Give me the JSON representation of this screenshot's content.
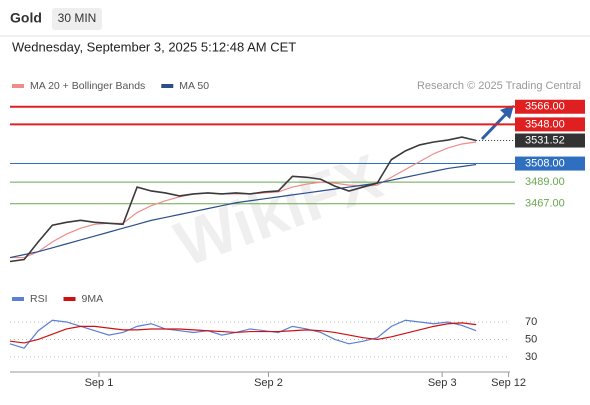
{
  "header": {
    "symbol": "Gold",
    "interval": "30 MIN",
    "timestamp": "Wednesday, September 3, 2025 5:12:48 AM CET"
  },
  "chart_data": [
    {
      "type": "line",
      "source": "Research © 2025 Trading Central",
      "watermark": "WikiFX",
      "x": [
        0,
        1,
        2,
        3,
        4,
        5,
        6,
        7,
        8,
        9,
        10,
        11,
        12,
        13,
        14,
        15,
        16,
        17,
        18,
        19,
        20,
        21,
        22,
        23,
        24,
        25,
        26,
        27,
        28,
        29,
        30,
        31,
        32,
        33
      ],
      "xlim": [
        0,
        35.4
      ],
      "xticks": [
        {
          "value": 6.3,
          "label": "Sep 1"
        },
        {
          "value": 18.3,
          "label": "Sep 2"
        },
        {
          "value": 30.6,
          "label": "Sep 3"
        },
        {
          "value": 35.3,
          "label": "Sep 12"
        }
      ],
      "ylim": [
        3384,
        3578
      ],
      "color": "#3a3a3a",
      "values": [
        3408,
        3410,
        3428,
        3445,
        3448,
        3450,
        3448,
        3447,
        3446,
        3484,
        3480,
        3478,
        3475,
        3477,
        3478,
        3477,
        3478,
        3477,
        3479,
        3480,
        3495,
        3494,
        3492,
        3485,
        3480,
        3484,
        3488,
        3512,
        3521,
        3527,
        3530,
        3532,
        3535,
        3531.52
      ],
      "series": [
        {
          "name": "MA 20 + Bollinger Bands",
          "color": "#f08c8c",
          "values": [
            3412,
            3412,
            3418,
            3428,
            3436,
            3442,
            3446,
            3447,
            3447,
            3458,
            3465,
            3470,
            3474,
            3477,
            3478,
            3477,
            3477,
            3477,
            3478,
            3479,
            3484,
            3487,
            3489,
            3488,
            3486,
            3485,
            3486,
            3494,
            3502,
            3510,
            3518,
            3524,
            3528,
            3530
          ]
        },
        {
          "name": "MA 50",
          "color": "#2c4f8c",
          "values": [
            3412,
            3415,
            3418,
            3422,
            3426,
            3430,
            3434,
            3438,
            3442,
            3446,
            3450,
            3453,
            3456,
            3459,
            3462,
            3465,
            3468,
            3470,
            3472,
            3474,
            3476,
            3478,
            3480,
            3482,
            3484,
            3486,
            3488,
            3491,
            3494,
            3497,
            3500,
            3503,
            3505,
            3507
          ]
        }
      ],
      "levels": [
        {
          "value": 3566,
          "label": "3566.00",
          "color": "#e02020",
          "style": "box"
        },
        {
          "value": 3548,
          "label": "3548.00",
          "color": "#e02020",
          "style": "box"
        },
        {
          "value": 3531.52,
          "label": "3531.52",
          "color": "#333333",
          "style": "current"
        },
        {
          "value": 3508,
          "label": "3508.00",
          "color": "#2f6fc0",
          "style": "box"
        },
        {
          "value": 3489,
          "label": "3489.00",
          "color": "#6aa84f",
          "style": "text"
        },
        {
          "value": 3467,
          "label": "3467.00",
          "color": "#6aa84f",
          "style": "text"
        }
      ]
    },
    {
      "type": "line",
      "ylim": [
        15,
        78
      ],
      "yticks": [
        30,
        50,
        70
      ],
      "series": [
        {
          "name": "RSI",
          "color": "#5b7fd6",
          "values": [
            45,
            40,
            60,
            72,
            70,
            65,
            60,
            55,
            58,
            65,
            68,
            62,
            60,
            58,
            60,
            55,
            58,
            62,
            60,
            58,
            65,
            62,
            58,
            50,
            45,
            48,
            52,
            65,
            72,
            70,
            68,
            70,
            66,
            60
          ]
        },
        {
          "name": "9MA",
          "color": "#d01010",
          "values": [
            48,
            46,
            50,
            56,
            62,
            65,
            65,
            63,
            61,
            61,
            62,
            62,
            62,
            61,
            60,
            59,
            58,
            59,
            59,
            59,
            60,
            61,
            60,
            58,
            55,
            52,
            50,
            53,
            57,
            61,
            65,
            68,
            69,
            67
          ]
        }
      ]
    }
  ]
}
